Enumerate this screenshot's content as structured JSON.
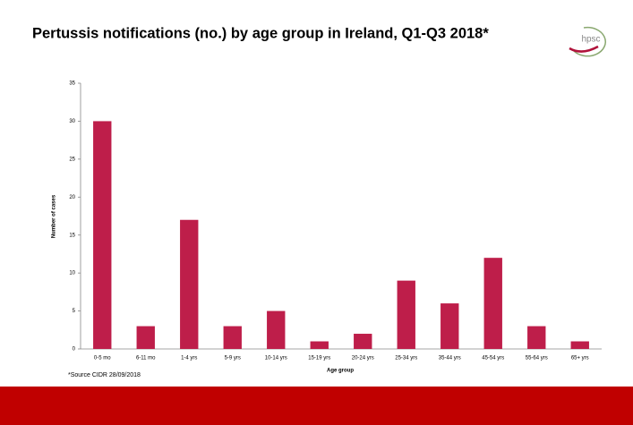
{
  "chart_data": {
    "type": "bar",
    "title": "Pertussis notifications (no.) by age group in Ireland, Q1-Q3 2018*",
    "logo": "hpsc",
    "y_label": "Number of cases",
    "x_label": "Age group",
    "source": "*Source CIDR 28/09/2018",
    "categories": [
      "0-5 mo",
      "6-11 mo",
      "1-4 yrs",
      "5-9 yrs",
      "10-14 yrs",
      "15-19 yrs",
      "20-24 yrs",
      "25-34 yrs",
      "35-44 yrs",
      "45-54 yrs",
      "55-64 yrs",
      "65+ yrs"
    ],
    "values": [
      30,
      3,
      17,
      3,
      5,
      1,
      2,
      9,
      6,
      12,
      3,
      1
    ],
    "color": "#be1e4a",
    "ylim": [
      0,
      35
    ],
    "yticks": [
      0,
      5,
      10,
      15,
      20,
      25,
      30,
      35
    ],
    "grid": false
  }
}
